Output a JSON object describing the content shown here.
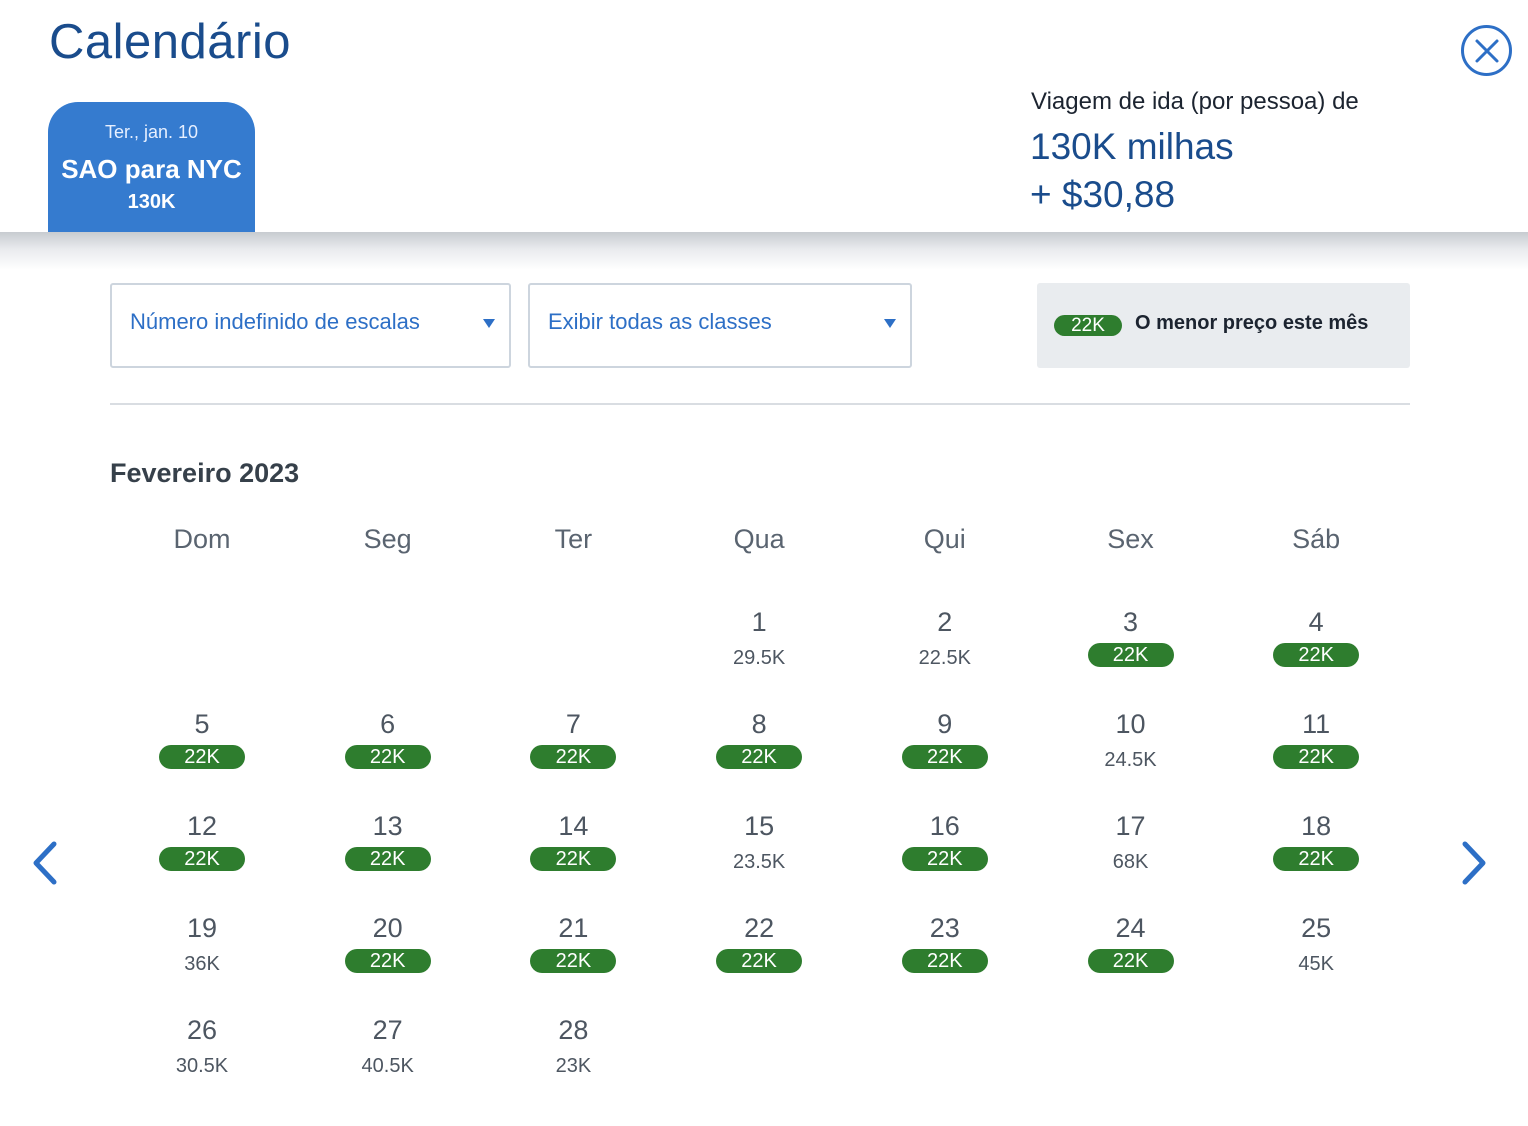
{
  "header": {
    "title": "Calendário",
    "close_icon": "close-circle-icon"
  },
  "trip": {
    "date": "Ter., jan. 10",
    "route": "SAO para NYC",
    "price": "130K"
  },
  "fare": {
    "label": "Viagem de ida (por pessoa) de",
    "miles": "130K milhas",
    "cash": "+ $30,88"
  },
  "filters": {
    "stops": "Número indefinido de escalas",
    "classes": "Exibir todas as classes"
  },
  "legend": {
    "pill": "22K",
    "text": "O menor preço este mês"
  },
  "calendar": {
    "month": "Fevereiro 2023",
    "weekdays": [
      "Dom",
      "Seg",
      "Ter",
      "Qua",
      "Qui",
      "Sex",
      "Sáb"
    ],
    "first_weekday_index": 3,
    "lowest_color": "#2e7d2e",
    "days": [
      {
        "day": "1",
        "price": "29.5K",
        "lowest": false
      },
      {
        "day": "2",
        "price": "22.5K",
        "lowest": false
      },
      {
        "day": "3",
        "price": "22K",
        "lowest": true
      },
      {
        "day": "4",
        "price": "22K",
        "lowest": true
      },
      {
        "day": "5",
        "price": "22K",
        "lowest": true
      },
      {
        "day": "6",
        "price": "22K",
        "lowest": true
      },
      {
        "day": "7",
        "price": "22K",
        "lowest": true
      },
      {
        "day": "8",
        "price": "22K",
        "lowest": true
      },
      {
        "day": "9",
        "price": "22K",
        "lowest": true
      },
      {
        "day": "10",
        "price": "24.5K",
        "lowest": false
      },
      {
        "day": "11",
        "price": "22K",
        "lowest": true
      },
      {
        "day": "12",
        "price": "22K",
        "lowest": true
      },
      {
        "day": "13",
        "price": "22K",
        "lowest": true
      },
      {
        "day": "14",
        "price": "22K",
        "lowest": true
      },
      {
        "day": "15",
        "price": "23.5K",
        "lowest": false
      },
      {
        "day": "16",
        "price": "22K",
        "lowest": true
      },
      {
        "day": "17",
        "price": "68K",
        "lowest": false
      },
      {
        "day": "18",
        "price": "22K",
        "lowest": true
      },
      {
        "day": "19",
        "price": "36K",
        "lowest": false
      },
      {
        "day": "20",
        "price": "22K",
        "lowest": true
      },
      {
        "day": "21",
        "price": "22K",
        "lowest": true
      },
      {
        "day": "22",
        "price": "22K",
        "lowest": true
      },
      {
        "day": "23",
        "price": "22K",
        "lowest": true
      },
      {
        "day": "24",
        "price": "22K",
        "lowest": true
      },
      {
        "day": "25",
        "price": "45K",
        "lowest": false
      },
      {
        "day": "26",
        "price": "30.5K",
        "lowest": false
      },
      {
        "day": "27",
        "price": "40.5K",
        "lowest": false
      },
      {
        "day": "28",
        "price": "23K",
        "lowest": false
      }
    ]
  },
  "nav": {
    "prev_icon": "chevron-left-icon",
    "next_icon": "chevron-right-icon"
  }
}
